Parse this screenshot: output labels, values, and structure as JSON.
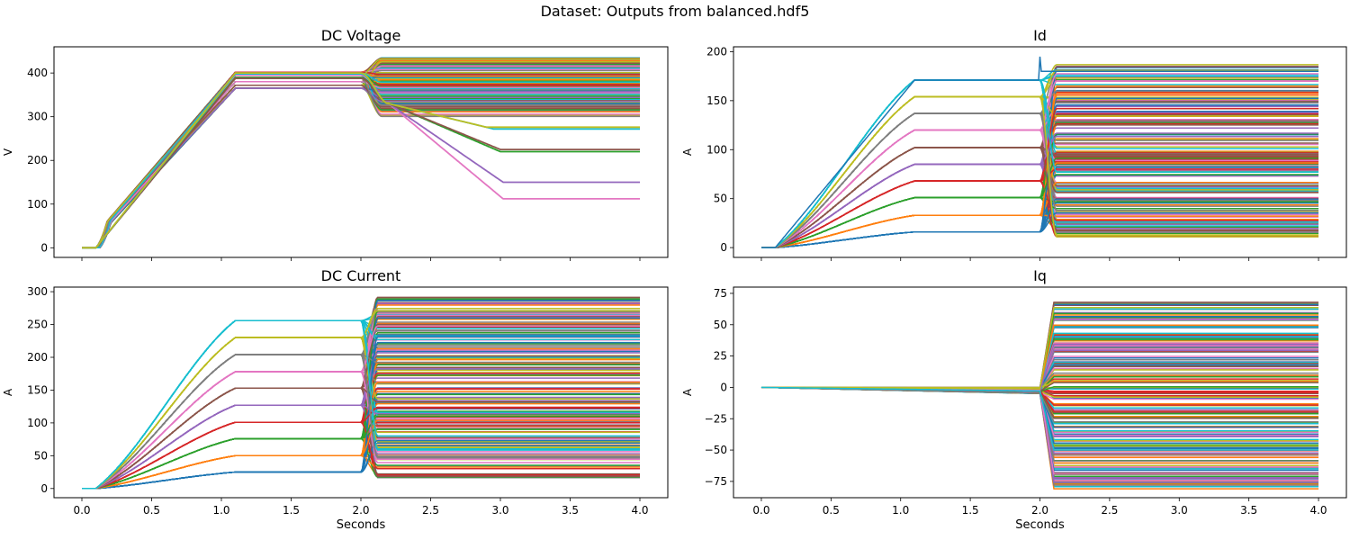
{
  "figure": {
    "suptitle": "Dataset: Outputs from balanced.hdf5"
  },
  "chart_data": [
    {
      "type": "line",
      "title": "DC Voltage",
      "xlabel": "",
      "ylabel": "V",
      "xlim": [
        -0.2,
        4.2
      ],
      "ylim": [
        -22,
        460
      ],
      "xticks": [
        0.0,
        0.5,
        1.0,
        1.5,
        2.0,
        2.5,
        3.0,
        3.5,
        4.0
      ],
      "xtick_labels_shown": false,
      "yticks": [
        0,
        100,
        200,
        300,
        400
      ],
      "ytick_labels": [
        "0",
        "100",
        "200",
        "300",
        "400"
      ],
      "grid": false,
      "legend": "none",
      "series_count_approx": 400,
      "plateau_levels": [
        365,
        372,
        380,
        388,
        395,
        400,
        402
      ],
      "final_value_range": [
        112,
        435
      ],
      "notable_final_levels": [
        112,
        150,
        220,
        225,
        270,
        275,
        300
      ],
      "series_representative": [
        {
          "x": [
            0,
            0.1,
            1.1,
            2.0,
            2.1,
            4.0
          ],
          "y": [
            0,
            0,
            365,
            365,
            308,
            300
          ]
        },
        {
          "x": [
            0,
            0.1,
            1.1,
            2.0,
            2.1,
            4.0
          ],
          "y": [
            0,
            0,
            400,
            400,
            435,
            435
          ]
        },
        {
          "x": [
            0,
            0.1,
            1.1,
            2.0,
            2.2,
            3.0,
            3.05,
            4.0
          ],
          "y": [
            0,
            0,
            395,
            395,
            320,
            115,
            112,
            112
          ]
        },
        {
          "x": [
            0,
            0.1,
            1.1,
            2.0,
            2.2,
            3.0,
            3.05,
            4.0
          ],
          "y": [
            0,
            0,
            395,
            395,
            330,
            155,
            150,
            150
          ]
        },
        {
          "x": [
            0,
            0.1,
            1.1,
            2.0,
            2.3,
            3.0,
            4.0
          ],
          "y": [
            0,
            0,
            390,
            390,
            300,
            225,
            222
          ]
        },
        {
          "x": [
            0,
            0.1,
            1.1,
            2.0,
            2.4,
            3.0,
            4.0
          ],
          "y": [
            0,
            0,
            398,
            398,
            330,
            275,
            272
          ]
        }
      ]
    },
    {
      "type": "line",
      "title": "Id",
      "xlabel": "",
      "ylabel": "A",
      "xlim": [
        -0.2,
        4.2
      ],
      "ylim": [
        -10,
        205
      ],
      "xticks": [
        0.0,
        0.5,
        1.0,
        1.5,
        2.0,
        2.5,
        3.0,
        3.5,
        4.0
      ],
      "xtick_labels_shown": false,
      "yticks": [
        0,
        50,
        100,
        150,
        200
      ],
      "ytick_labels": [
        "0",
        "50",
        "100",
        "150",
        "200"
      ],
      "grid": false,
      "legend": "none",
      "series_count_approx": 400,
      "plateau_levels": [
        16,
        33,
        51,
        68,
        85,
        102,
        120,
        137,
        154,
        171
      ],
      "final_value_range": [
        10,
        188
      ],
      "spike_at_x": 2.0,
      "spike_peak": 195,
      "series_representative": [
        {
          "x": [
            0,
            0.1,
            1.1,
            2.0,
            2.1,
            4.0
          ],
          "y": [
            0,
            0,
            171,
            171,
            188,
            188
          ]
        },
        {
          "x": [
            0,
            0.1,
            1.1,
            2.0,
            2.1,
            4.0
          ],
          "y": [
            0,
            0,
            16,
            16,
            12,
            10
          ]
        },
        {
          "x": [
            0,
            0.1,
            1.1,
            2.0,
            2.1,
            4.0
          ],
          "y": [
            0,
            0,
            85,
            85,
            78,
            76
          ]
        }
      ]
    },
    {
      "type": "line",
      "title": "DC Current",
      "xlabel": "Seconds",
      "ylabel": "A",
      "xlim": [
        -0.2,
        4.2
      ],
      "ylim": [
        -14,
        307
      ],
      "xticks": [
        0.0,
        0.5,
        1.0,
        1.5,
        2.0,
        2.5,
        3.0,
        3.5,
        4.0
      ],
      "xtick_labels": [
        "0.0",
        "0.5",
        "1.0",
        "1.5",
        "2.0",
        "2.5",
        "3.0",
        "3.5",
        "4.0"
      ],
      "yticks": [
        0,
        50,
        100,
        150,
        200,
        250,
        300
      ],
      "ytick_labels": [
        "0",
        "50",
        "100",
        "150",
        "200",
        "250",
        "300"
      ],
      "grid": false,
      "legend": "none",
      "series_count_approx": 400,
      "plateau_levels": [
        25,
        50,
        76,
        101,
        127,
        153,
        178,
        204,
        230,
        256
      ],
      "final_value_range": [
        15,
        292
      ],
      "series_representative": [
        {
          "x": [
            0,
            0.1,
            1.1,
            2.0,
            2.1,
            4.0
          ],
          "y": [
            0,
            0,
            256,
            256,
            292,
            292
          ]
        },
        {
          "x": [
            0,
            0.1,
            1.1,
            2.0,
            2.1,
            4.0
          ],
          "y": [
            0,
            0,
            25,
            25,
            18,
            15
          ]
        }
      ]
    },
    {
      "type": "line",
      "title": "Iq",
      "xlabel": "Seconds",
      "ylabel": "A",
      "xlim": [
        -0.2,
        4.2
      ],
      "ylim": [
        -88,
        80
      ],
      "xticks": [
        0.0,
        0.5,
        1.0,
        1.5,
        2.0,
        2.5,
        3.0,
        3.5,
        4.0
      ],
      "xtick_labels": [
        "0.0",
        "0.5",
        "1.0",
        "1.5",
        "2.0",
        "2.5",
        "3.0",
        "3.5",
        "4.0"
      ],
      "yticks": [
        -75,
        -50,
        -25,
        0,
        25,
        50,
        75
      ],
      "ytick_labels": [
        "−75",
        "−50",
        "−25",
        "0",
        "25",
        "50",
        "75"
      ],
      "grid": false,
      "legend": "none",
      "series_count_approx": 400,
      "pre_step_range": [
        -5,
        0
      ],
      "final_value_range": [
        -81,
        72
      ],
      "series_representative": [
        {
          "x": [
            0,
            2.0,
            2.1,
            4.0
          ],
          "y": [
            0,
            -1,
            72,
            72
          ]
        },
        {
          "x": [
            0,
            2.0,
            2.1,
            4.0
          ],
          "y": [
            0,
            -5,
            -81,
            -81
          ]
        }
      ]
    }
  ],
  "colors": {
    "cycle": [
      "#1f77b4",
      "#ff7f0e",
      "#2ca02c",
      "#d62728",
      "#9467bd",
      "#8c564b",
      "#e377c2",
      "#7f7f7f",
      "#bcbd22",
      "#17becf"
    ]
  }
}
